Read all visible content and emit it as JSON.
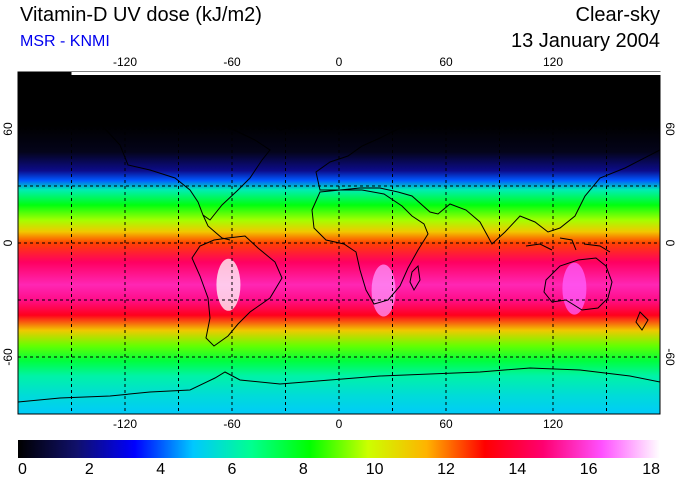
{
  "header": {
    "title": "Vitamin-D UV dose (kJ/m2)",
    "subtitle": "MSR - KNMI",
    "condition": "Clear-sky",
    "date": "13 January 2004"
  },
  "map": {
    "projection": "equirectangular",
    "lon_range": [
      -180,
      180
    ],
    "lat_range": [
      -90,
      90
    ],
    "lon_ticks": [
      "-120",
      "-60",
      "0",
      "60",
      "120"
    ],
    "lat_ticks": [
      "60",
      "0",
      "-60"
    ],
    "grid": "dashed every 30 degrees",
    "coastlines": true
  },
  "colorbar": {
    "ticks": [
      "0",
      "2",
      "4",
      "6",
      "8",
      "10",
      "12",
      "14",
      "16",
      "18"
    ],
    "min": 0,
    "max": 18,
    "colors": [
      "#000000",
      "#10106a",
      "#0000ff",
      "#00c8ff",
      "#00ff90",
      "#00ff00",
      "#ccff00",
      "#ffb300",
      "#ff0000",
      "#ff0070",
      "#ff50ff",
      "#ffffff"
    ]
  },
  "zonal_profile": [
    {
      "lat": 90,
      "value": 0
    },
    {
      "lat": 62,
      "value": 0
    },
    {
      "lat": 48,
      "value": 0.4
    },
    {
      "lat": 38,
      "value": 2.0
    },
    {
      "lat": 33,
      "value": 4.0
    },
    {
      "lat": 28,
      "value": 6.0
    },
    {
      "lat": 20,
      "value": 8.0
    },
    {
      "lat": 12,
      "value": 9.5
    },
    {
      "lat": 6,
      "value": 11.0
    },
    {
      "lat": 0,
      "value": 12.5
    },
    {
      "lat": -10,
      "value": 14.5
    },
    {
      "lat": -22,
      "value": 15.5
    },
    {
      "lat": -30,
      "value": 15.0
    },
    {
      "lat": -38,
      "value": 13.5
    },
    {
      "lat": -46,
      "value": 11.0
    },
    {
      "lat": -54,
      "value": 9.0
    },
    {
      "lat": -62,
      "value": 7.5
    },
    {
      "lat": -70,
      "value": 6.2
    },
    {
      "lat": -80,
      "value": 5.5
    },
    {
      "lat": -90,
      "value": 5.0
    }
  ],
  "hotspots": [
    {
      "lon": -62,
      "lat": -22,
      "value": 18
    },
    {
      "lon": 25,
      "lat": -25,
      "value": 17
    },
    {
      "lon": 132,
      "lat": -24,
      "value": 16.5
    }
  ]
}
